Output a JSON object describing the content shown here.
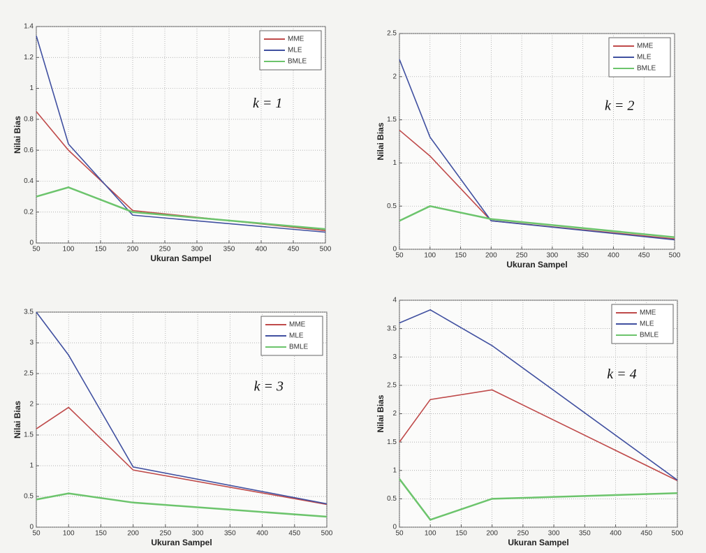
{
  "chart_data": [
    {
      "type": "line",
      "annotation": "k = 1",
      "xlabel": "Ukuran Sampel",
      "ylabel": "Nilai Bias",
      "x": [
        50,
        100,
        200,
        500
      ],
      "xlim": [
        50,
        500
      ],
      "xticks": [
        50,
        100,
        150,
        200,
        250,
        300,
        350,
        400,
        450,
        500
      ],
      "ylim": [
        0,
        1.4
      ],
      "yticks": [
        0,
        0.2,
        0.4,
        0.6,
        0.8,
        1,
        1.2,
        1.4
      ],
      "grid": true,
      "legend": "upper right",
      "series": [
        {
          "name": "MME",
          "color": "#bf4a4a",
          "values": [
            0.85,
            0.6,
            0.21,
            0.08
          ]
        },
        {
          "name": "MLE",
          "color": "#4050a0",
          "values": [
            1.34,
            0.64,
            0.18,
            0.07
          ]
        },
        {
          "name": "BMLE",
          "color": "#6cc46c",
          "values": [
            0.3,
            0.36,
            0.2,
            0.09
          ]
        }
      ]
    },
    {
      "type": "line",
      "annotation": "k = 2",
      "xlabel": "Ukuran Sampel",
      "ylabel": "Nilai Bias",
      "x": [
        50,
        100,
        200,
        500
      ],
      "xlim": [
        50,
        500
      ],
      "xticks": [
        50,
        100,
        150,
        200,
        250,
        300,
        350,
        400,
        450,
        500
      ],
      "ylim": [
        0,
        2.5
      ],
      "yticks": [
        0,
        0.5,
        1,
        1.5,
        2,
        2.5
      ],
      "grid": true,
      "legend": "upper right",
      "series": [
        {
          "name": "MME",
          "color": "#bf4a4a",
          "values": [
            1.38,
            1.08,
            0.33,
            0.12
          ]
        },
        {
          "name": "MLE",
          "color": "#4050a0",
          "values": [
            2.2,
            1.3,
            0.33,
            0.11
          ]
        },
        {
          "name": "BMLE",
          "color": "#6cc46c",
          "values": [
            0.33,
            0.5,
            0.35,
            0.14
          ]
        }
      ]
    },
    {
      "type": "line",
      "annotation": "k = 3",
      "xlabel": "Ukuran Sampel",
      "ylabel": "Nilai Bias",
      "x": [
        50,
        100,
        200,
        500
      ],
      "xlim": [
        50,
        500
      ],
      "xticks": [
        50,
        100,
        150,
        200,
        250,
        300,
        350,
        400,
        450,
        500
      ],
      "ylim": [
        0,
        3.5
      ],
      "yticks": [
        0,
        0.5,
        1,
        1.5,
        2,
        2.5,
        3,
        3.5
      ],
      "grid": true,
      "legend": "upper right",
      "series": [
        {
          "name": "MME",
          "color": "#bf4a4a",
          "values": [
            1.6,
            1.95,
            0.93,
            0.37
          ]
        },
        {
          "name": "MLE",
          "color": "#4050a0",
          "values": [
            3.5,
            2.8,
            0.98,
            0.38
          ]
        },
        {
          "name": "BMLE",
          "color": "#6cc46c",
          "values": [
            0.45,
            0.55,
            0.4,
            0.17
          ]
        }
      ]
    },
    {
      "type": "line",
      "annotation": "k = 4",
      "xlabel": "Ukuran Sampel",
      "ylabel": "Nilai Bias",
      "x": [
        50,
        100,
        200,
        500
      ],
      "xlim": [
        50,
        500
      ],
      "xticks": [
        50,
        100,
        150,
        200,
        250,
        300,
        350,
        400,
        450,
        500
      ],
      "ylim": [
        0,
        4
      ],
      "yticks": [
        0,
        0.5,
        1,
        1.5,
        2,
        2.5,
        3,
        3.5,
        4
      ],
      "grid": true,
      "legend": "upper right",
      "series": [
        {
          "name": "MME",
          "color": "#bf4a4a",
          "values": [
            1.5,
            2.25,
            2.42,
            0.82
          ]
        },
        {
          "name": "MLE",
          "color": "#4050a0",
          "values": [
            3.6,
            3.83,
            3.2,
            0.83
          ]
        },
        {
          "name": "BMLE",
          "color": "#6cc46c",
          "values": [
            0.85,
            0.13,
            0.5,
            0.6
          ]
        }
      ]
    }
  ]
}
